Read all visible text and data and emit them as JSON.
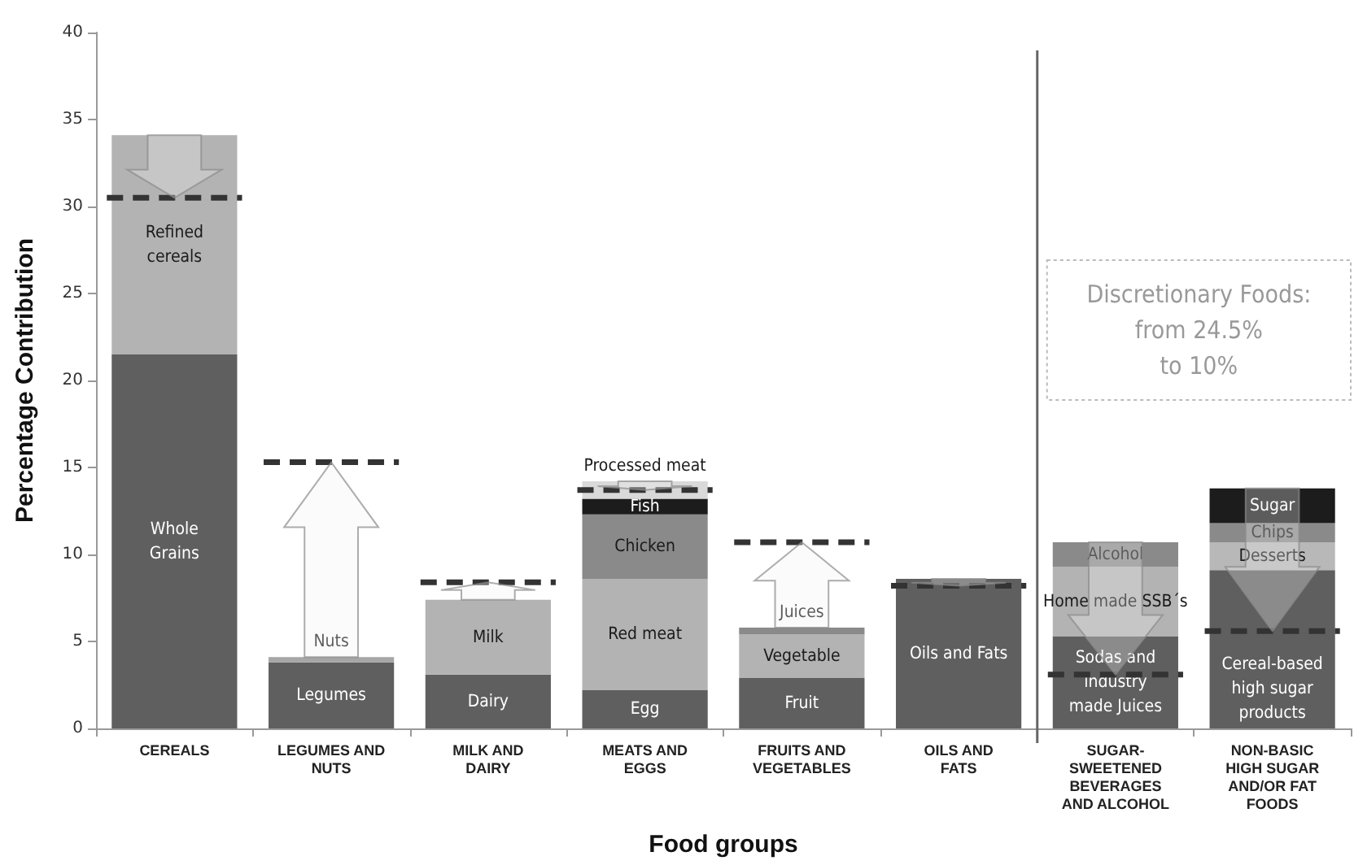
{
  "chart_data": {
    "type": "bar",
    "stacked": true,
    "xlabel": "Food groups",
    "ylabel": "Percentage Contribution",
    "categories": [
      "CEREALS",
      "LEGUMES AND\nNUTS",
      "MILK AND\nDAIRY",
      "MEATS AND\nEGGS",
      "FRUITS AND\nVEGETABLES",
      "OILS AND\nFATS",
      "SUGAR-\nSWEETENED\nBEVERAGES\nAND ALCOHOL",
      "NON-BASIC\nHIGH SUGAR\nAND/OR FAT\nFOODS"
    ],
    "series": [
      {
        "values": [
          21.5,
          3.8,
          3.1,
          2.2,
          2.9,
          8.6,
          5.3,
          9.1
        ],
        "color": "#5f5f5f",
        "value_labels": [
          "Whole\nGrains",
          "Legumes",
          "Dairy",
          "Egg",
          "Fruit",
          "Oils and Fats",
          "Sodas and\nindustry\nmade Juices",
          "Cereal-based\nhigh sugar\nproducts"
        ]
      },
      {
        "values": [
          12.6,
          0.3,
          4.3,
          6.4,
          2.5,
          null,
          4.0,
          1.6
        ],
        "colors": [
          "#b3b3b3",
          "#a6a6a6",
          "#b3b3b3",
          "#b3b3b3",
          "#b3b3b3",
          null,
          "#b3b3b3",
          "#b8b8b8"
        ],
        "value_labels": [
          "Refined\ncereals",
          "Nuts",
          "Milk",
          "Red meat",
          "Vegetable",
          null,
          "Home made SSB´s",
          "Desserts"
        ]
      },
      {
        "values": [
          null,
          null,
          null,
          3.7,
          0.4,
          null,
          1.4,
          1.1
        ],
        "colors": [
          null,
          null,
          null,
          "#8a8a8a",
          "#8a8a8a",
          null,
          "#8a8a8a",
          "#8a8a8a"
        ],
        "value_labels": [
          null,
          null,
          null,
          "Chicken",
          "Juices",
          null,
          "Alcohol",
          "Chips"
        ]
      },
      {
        "values": [
          null,
          null,
          null,
          0.9,
          null,
          null,
          null,
          2.0
        ],
        "colors": [
          null,
          null,
          null,
          "#1c1c1c",
          null,
          null,
          null,
          "#1c1c1c"
        ],
        "value_labels": [
          null,
          null,
          null,
          "Fish",
          null,
          null,
          null,
          "Sugar"
        ]
      },
      {
        "values": [
          null,
          null,
          null,
          1.0,
          null,
          null,
          null,
          null
        ],
        "colors": [
          null,
          null,
          null,
          "#d9d9d9",
          null,
          null,
          null,
          null
        ],
        "value_labels": [
          null,
          null,
          null,
          "Processed meat",
          null,
          null,
          null,
          null
        ]
      }
    ],
    "ylim": [
      0,
      40
    ],
    "yticks": [
      0,
      5,
      10,
      15,
      20,
      25,
      30,
      35,
      40
    ],
    "grid": false,
    "ref_lines": [
      {
        "axis": "y",
        "value": 30.5,
        "line_style": "dashed",
        "color": "#333333"
      },
      {
        "axis": "y",
        "value": 15.3,
        "line_style": "dashed",
        "color": "#333333"
      },
      {
        "axis": "y",
        "value": 8.4,
        "line_style": "dashed",
        "color": "#333333"
      },
      {
        "axis": "y",
        "value": 13.7,
        "line_style": "dashed",
        "color": "#333333"
      },
      {
        "axis": "y",
        "value": 10.7,
        "line_style": "dashed",
        "color": "#333333"
      },
      {
        "axis": "y",
        "value": 8.2,
        "line_style": "dashed",
        "color": "#333333"
      },
      {
        "axis": "y",
        "value": 3.1,
        "line_style": "dashed",
        "color": "#333333"
      },
      {
        "axis": "y",
        "value": 5.6,
        "line_style": "dashed",
        "color": "#333333"
      }
    ],
    "annotations": [
      "Discretionary Foods:\nfrom 24.5%\nto 10%"
    ]
  }
}
